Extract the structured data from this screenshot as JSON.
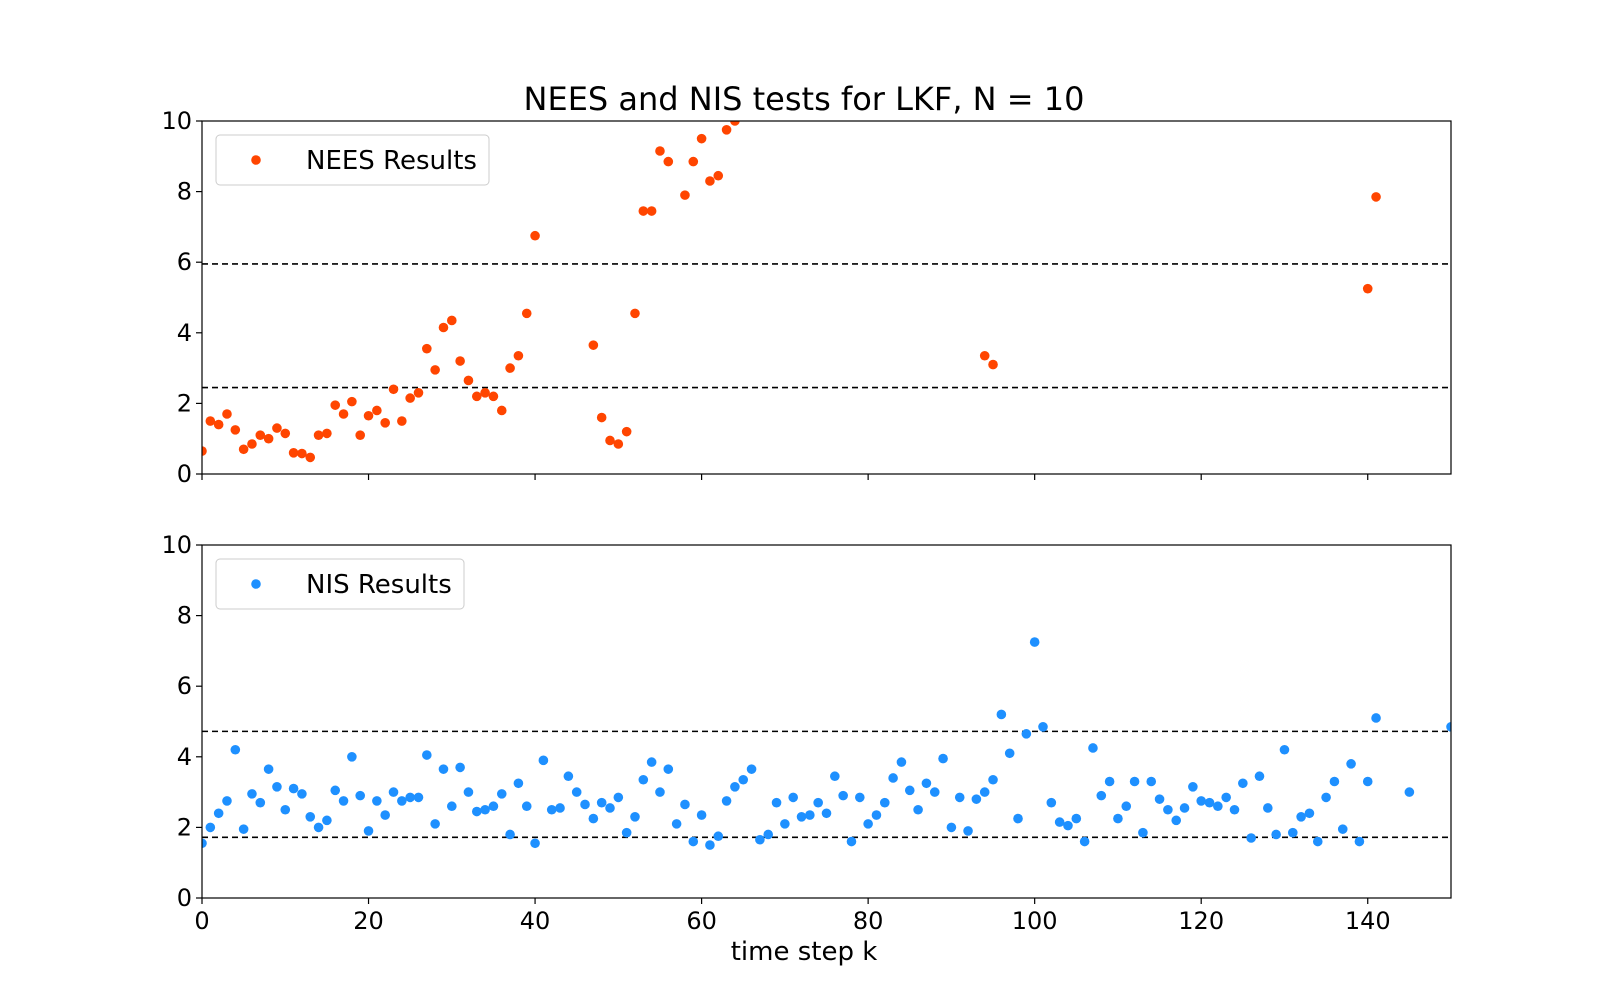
{
  "chart_data": [
    {
      "type": "scatter",
      "title": "NEES and NIS tests for LKF, N = 10",
      "xlabel": "",
      "ylabel": "",
      "xlim": [
        0,
        150
      ],
      "ylim": [
        0,
        10
      ],
      "xticks": [
        0,
        20,
        40,
        60,
        80,
        100,
        120,
        140
      ],
      "yticks": [
        0,
        2,
        4,
        6,
        8,
        10
      ],
      "xtick_labels_visible": false,
      "legend": {
        "location": "upper-left",
        "entries": [
          "NEES Results"
        ]
      },
      "grid": false,
      "bounds": [
        2.45,
        5.95
      ],
      "series": [
        {
          "name": "NEES Results",
          "color": "#ff4500",
          "x": [
            0,
            1,
            2,
            3,
            4,
            5,
            6,
            7,
            8,
            9,
            10,
            11,
            12,
            13,
            14,
            15,
            16,
            17,
            18,
            19,
            20,
            21,
            22,
            23,
            24,
            25,
            26,
            27,
            28,
            29,
            30,
            31,
            32,
            33,
            34,
            35,
            36,
            37,
            38,
            39,
            40,
            47,
            48,
            49,
            50,
            51,
            52,
            53,
            54,
            55,
            56,
            58,
            59,
            60,
            61,
            62,
            63,
            64,
            94,
            95,
            140,
            141
          ],
          "y": [
            0.65,
            1.5,
            1.4,
            1.7,
            1.25,
            0.7,
            0.85,
            1.1,
            1.0,
            1.3,
            1.15,
            0.6,
            0.58,
            0.47,
            1.1,
            1.15,
            1.95,
            1.7,
            2.05,
            1.1,
            1.65,
            1.8,
            1.45,
            2.4,
            1.5,
            2.15,
            2.3,
            3.55,
            2.95,
            4.15,
            4.35,
            3.2,
            2.65,
            2.2,
            2.3,
            2.2,
            1.8,
            3.0,
            3.35,
            4.55,
            6.75,
            3.65,
            1.6,
            0.95,
            0.85,
            1.2,
            4.55,
            7.45,
            7.45,
            9.15,
            8.85,
            7.9,
            8.85,
            9.5,
            8.3,
            8.45,
            9.75,
            10.0,
            3.35,
            3.1,
            5.25,
            7.85
          ]
        }
      ]
    },
    {
      "type": "scatter",
      "title": "",
      "xlabel": "time step k",
      "ylabel": "",
      "xlim": [
        0,
        150
      ],
      "ylim": [
        0,
        10
      ],
      "xticks": [
        0,
        20,
        40,
        60,
        80,
        100,
        120,
        140
      ],
      "yticks": [
        0,
        2,
        4,
        6,
        8,
        10
      ],
      "xtick_labels_visible": true,
      "legend": {
        "location": "upper-left",
        "entries": [
          "NIS Results"
        ]
      },
      "grid": false,
      "bounds": [
        1.72,
        4.72
      ],
      "series": [
        {
          "name": "NIS Results",
          "color": "#1e90ff",
          "x": [
            0,
            1,
            2,
            3,
            4,
            5,
            6,
            7,
            8,
            9,
            10,
            11,
            12,
            13,
            14,
            15,
            16,
            17,
            18,
            19,
            20,
            21,
            22,
            23,
            24,
            25,
            26,
            27,
            28,
            29,
            30,
            31,
            32,
            33,
            34,
            35,
            36,
            37,
            38,
            39,
            40,
            41,
            42,
            43,
            44,
            45,
            46,
            47,
            48,
            49,
            50,
            51,
            52,
            53,
            54,
            55,
            56,
            57,
            58,
            59,
            60,
            61,
            62,
            63,
            64,
            65,
            66,
            67,
            68,
            69,
            70,
            71,
            72,
            73,
            74,
            75,
            76,
            77,
            78,
            79,
            80,
            81,
            82,
            83,
            84,
            85,
            86,
            87,
            88,
            89,
            90,
            91,
            92,
            93,
            94,
            95,
            96,
            97,
            98,
            99,
            100,
            101,
            102,
            103,
            104,
            105,
            106,
            107,
            108,
            109,
            110,
            111,
            112,
            113,
            114,
            115,
            116,
            117,
            118,
            119,
            120,
            121,
            122,
            123,
            124,
            125,
            126,
            127,
            128,
            129,
            130,
            131,
            132,
            133,
            134,
            135,
            136,
            137,
            138,
            139,
            140,
            141,
            145,
            150
          ],
          "y": [
            1.55,
            2.0,
            2.4,
            2.75,
            4.2,
            1.95,
            2.95,
            2.7,
            3.65,
            3.15,
            2.5,
            3.1,
            2.95,
            2.3,
            2.0,
            2.2,
            3.05,
            2.75,
            4.0,
            2.9,
            1.9,
            2.75,
            2.35,
            3.0,
            2.75,
            2.85,
            2.85,
            4.05,
            2.1,
            3.65,
            2.6,
            3.7,
            3.0,
            2.45,
            2.5,
            2.6,
            2.95,
            1.8,
            3.25,
            2.6,
            1.55,
            3.9,
            2.5,
            2.55,
            3.45,
            3.0,
            2.65,
            2.25,
            2.7,
            2.55,
            2.85,
            1.85,
            2.3,
            3.35,
            3.85,
            3.0,
            3.65,
            2.1,
            2.65,
            1.6,
            2.35,
            1.5,
            1.75,
            2.75,
            3.15,
            3.35,
            3.65,
            1.65,
            1.8,
            2.7,
            2.1,
            2.85,
            2.3,
            2.35,
            2.7,
            2.4,
            3.45,
            2.9,
            1.6,
            2.85,
            2.1,
            2.35,
            2.7,
            3.4,
            3.85,
            3.05,
            2.5,
            3.25,
            3.0,
            3.95,
            2.0,
            2.85,
            1.9,
            2.8,
            3.0,
            3.35,
            5.2,
            4.1,
            2.25,
            4.65,
            7.25,
            4.85,
            2.7,
            2.15,
            2.05,
            2.25,
            1.6,
            4.25,
            2.9,
            3.3,
            2.25,
            2.6,
            3.3,
            1.85,
            3.3,
            2.8,
            2.5,
            2.2,
            2.55,
            3.15,
            2.75,
            2.7,
            2.6,
            2.85,
            2.5,
            3.25,
            1.7,
            3.45,
            2.55,
            1.8,
            4.2,
            1.85,
            2.3,
            2.4,
            1.6,
            2.85,
            3.3,
            1.95,
            3.8,
            1.6,
            3.3,
            5.1,
            3.0,
            4.85
          ]
        }
      ]
    }
  ]
}
